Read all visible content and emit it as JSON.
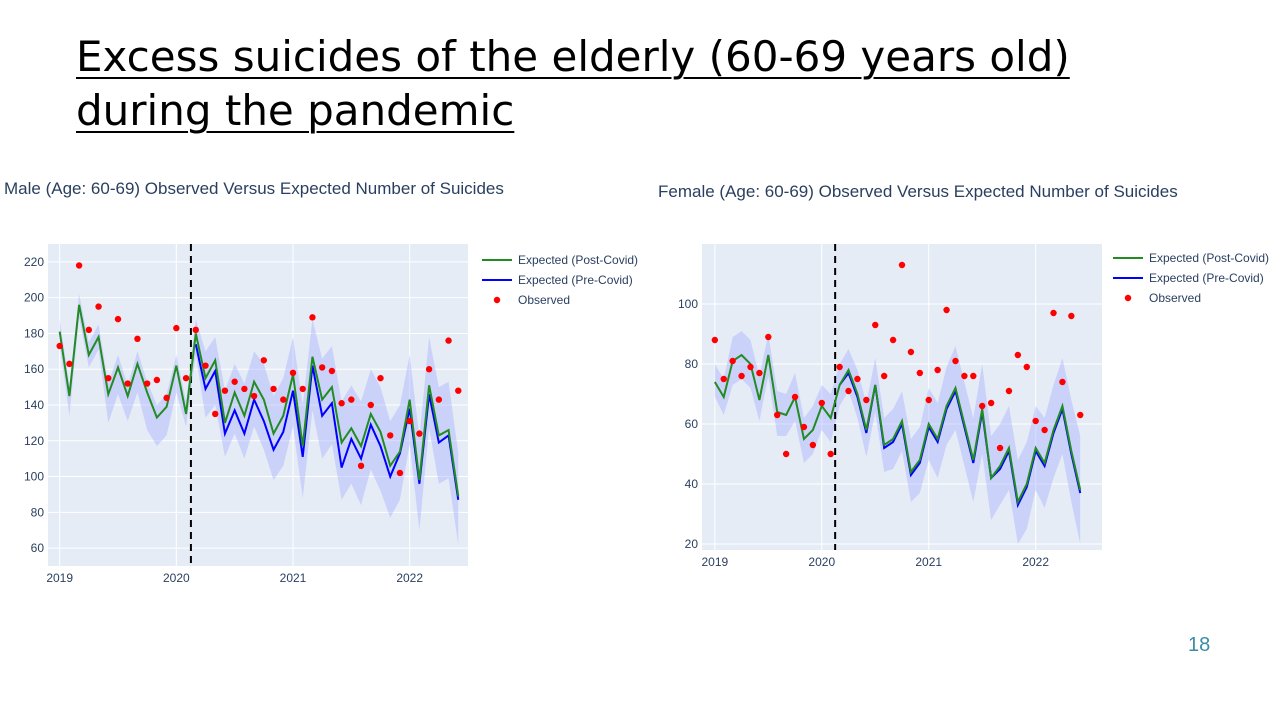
{
  "slide": {
    "title_line1": "Excess suicides of the elderly (60-69 years old)",
    "title_line2": "during the pandemic",
    "page_number": "18"
  },
  "colors": {
    "post": "#228b22",
    "pre": "#0000ff",
    "observed": "#ff0000",
    "band": "#aab4ff",
    "plot_bg": "#e5ecf6",
    "grid": "#ffffff",
    "axis_text": "#2a3f5f"
  },
  "chart_data": [
    {
      "type": "line",
      "title": "Male (Age: 60-69) Observed Versus Expected Number of Suicides",
      "x_ticks": [
        "2019",
        "2020",
        "2021",
        "2022"
      ],
      "y_ticks": [
        60,
        80,
        100,
        120,
        140,
        160,
        180,
        200,
        220
      ],
      "xlim": [
        2018.9,
        2022.5
      ],
      "ylim": [
        50,
        230
      ],
      "vline": 2020.125,
      "legend": [
        "Expected (Post-Covid)",
        "Expected (Pre-Covid)",
        "Observed"
      ],
      "post": [
        181,
        145,
        196,
        168,
        178,
        146,
        161,
        145,
        163,
        147,
        133,
        139,
        162,
        135,
        180,
        155,
        165,
        130,
        147,
        134,
        153,
        143,
        124,
        134,
        157,
        117,
        167,
        143,
        150,
        119,
        127,
        117,
        135,
        125,
        106,
        114,
        143,
        98,
        151,
        123,
        126,
        89
      ],
      "pre_after": [
        174,
        149,
        159,
        124,
        137,
        124,
        143,
        131,
        115,
        125,
        148,
        111,
        162,
        134,
        141,
        105,
        121,
        110,
        129,
        117,
        100,
        113,
        138,
        96,
        146,
        119,
        123,
        87
      ],
      "band_hi": [
        188,
        151,
        202,
        175,
        185,
        152,
        168,
        151,
        170,
        153,
        140,
        146,
        168,
        142,
        188,
        170,
        178,
        148,
        163,
        152,
        170,
        163,
        145,
        155,
        178,
        140,
        188,
        166,
        173,
        142,
        151,
        142,
        160,
        150,
        131,
        140,
        168,
        122,
        178,
        150,
        153,
        113
      ],
      "band_lo": [
        174,
        134,
        189,
        161,
        171,
        130,
        146,
        131,
        147,
        126,
        117,
        123,
        147,
        128,
        168,
        133,
        140,
        111,
        124,
        110,
        128,
        115,
        98,
        106,
        128,
        88,
        137,
        110,
        118,
        87,
        96,
        84,
        104,
        92,
        77,
        87,
        118,
        70,
        127,
        96,
        99,
        62
      ],
      "observed": [
        173,
        163,
        218,
        182,
        195,
        155,
        188,
        152,
        177,
        152,
        154,
        144,
        183,
        155,
        182,
        162,
        135,
        148,
        153,
        149,
        145,
        165,
        149,
        143,
        158,
        149,
        189,
        161,
        159,
        141,
        143,
        106,
        140,
        155,
        123,
        102,
        131,
        124,
        160,
        143,
        176,
        148
      ]
    },
    {
      "type": "line",
      "title": "Female (Age: 60-69) Observed Versus Expected Number of Suicides",
      "x_ticks": [
        "2019",
        "2020",
        "2021",
        "2022"
      ],
      "y_ticks": [
        20,
        40,
        60,
        80,
        100
      ],
      "xlim": [
        2018.88,
        2022.62
      ],
      "ylim": [
        18,
        120
      ],
      "vline": 2020.125,
      "legend": [
        "Expected (Post-Covid)",
        "Expected (Pre-Covid)",
        "Observed"
      ],
      "post": [
        74,
        69,
        81,
        83,
        80,
        68,
        83,
        64,
        63,
        69,
        55,
        58,
        66,
        62,
        73,
        78,
        70,
        58,
        73,
        53,
        55,
        61,
        44,
        48,
        60,
        55,
        66,
        72,
        60,
        48,
        65,
        42,
        46,
        52,
        34,
        40,
        52,
        47,
        58,
        66,
        51,
        38
      ],
      "pre_after": [
        73,
        77,
        69,
        57,
        73,
        52,
        54,
        60,
        43,
        47,
        59,
        54,
        65,
        71,
        59,
        47,
        64,
        42,
        45,
        51,
        33,
        39,
        51,
        46,
        57,
        65,
        50,
        37
      ],
      "band_hi": [
        80,
        75,
        89,
        91,
        88,
        76,
        90,
        71,
        70,
        77,
        62,
        66,
        73,
        70,
        80,
        85,
        78,
        67,
        82,
        62,
        65,
        71,
        55,
        59,
        72,
        67,
        79,
        86,
        74,
        62,
        80,
        56,
        60,
        66,
        48,
        54,
        66,
        62,
        73,
        82,
        68,
        56
      ],
      "band_lo": [
        69,
        63,
        73,
        75,
        72,
        61,
        76,
        56,
        56,
        61,
        47,
        50,
        58,
        54,
        66,
        71,
        62,
        49,
        64,
        44,
        45,
        51,
        34,
        37,
        48,
        42,
        53,
        58,
        46,
        34,
        50,
        28,
        33,
        38,
        20,
        25,
        38,
        32,
        42,
        50,
        34,
        20
      ],
      "observed": [
        88,
        75,
        81,
        76,
        79,
        77,
        89,
        63,
        50,
        69,
        59,
        53,
        67,
        50,
        79,
        71,
        75,
        68,
        93,
        76,
        88,
        113,
        84,
        77,
        68,
        78,
        98,
        81,
        76,
        76,
        66,
        67,
        52,
        71,
        83,
        79,
        61,
        58,
        97,
        74,
        96,
        63
      ]
    }
  ]
}
